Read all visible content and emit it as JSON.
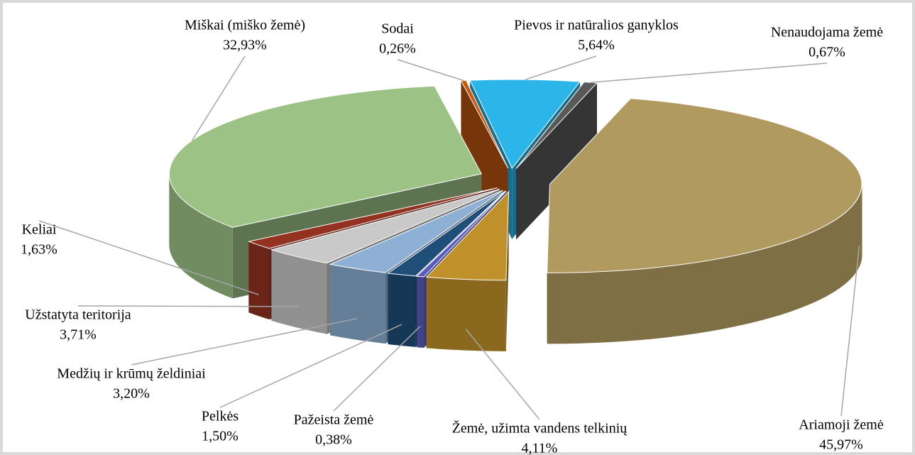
{
  "chart_data": {
    "type": "pie",
    "categories": [
      "Ariamoji žemė",
      "Žemė, užimta vandens telkinių",
      "Pažeista žemė",
      "Pelkės",
      "Medžių ir krūmų želdiniai",
      "Užstatyta teritorija",
      "Keliai",
      "Miškai (miško žemė)",
      "Sodai",
      "Pievos ir natūralios ganyklos",
      "Nenaudojama žemė"
    ],
    "values": [
      45.97,
      4.11,
      0.38,
      1.5,
      3.2,
      3.71,
      1.63,
      32.93,
      0.26,
      5.64,
      0.67
    ],
    "value_labels": [
      "45,97%",
      "4,11%",
      "0,38%",
      "1,50%",
      "3,20%",
      "3,71%",
      "1,63%",
      "32,93%",
      "0,26%",
      "5,64%",
      "0,67%"
    ],
    "colors": [
      "#b09a60",
      "#c0902a",
      "#5b5bbd",
      "#1f4e79",
      "#8eb0d4",
      "#c9c9c9",
      "#943222",
      "#9cc285",
      "#c55a11",
      "#2cb5e8",
      "#595959"
    ]
  }
}
